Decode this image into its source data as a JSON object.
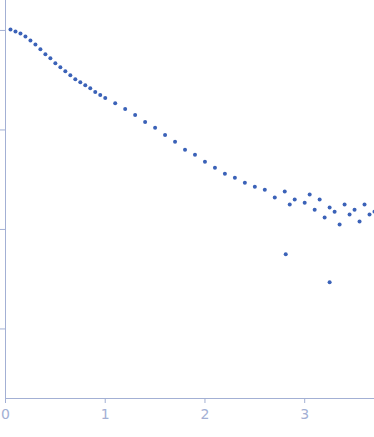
{
  "chart_data": {
    "type": "scatter",
    "log": "y",
    "tick_labels": "x",
    "color": "#3b62b8",
    "marker": "circle",
    "x": [
      0.05,
      0.1,
      0.15,
      0.2,
      0.25,
      0.3,
      0.35,
      0.4,
      0.45,
      0.5,
      0.55,
      0.6,
      0.65,
      0.7,
      0.75,
      0.8,
      0.85,
      0.9,
      0.95,
      1.0,
      1.1,
      1.2,
      1.3,
      1.4,
      1.5,
      1.6,
      1.7,
      1.8,
      1.9,
      2.0,
      2.1,
      2.2,
      2.3,
      2.4,
      2.5,
      2.6,
      2.7,
      2.8,
      2.81,
      2.85,
      2.9,
      3.0,
      3.05,
      3.1,
      3.15,
      3.2,
      3.25,
      3.25,
      3.3,
      3.35,
      3.4,
      3.45,
      3.5,
      3.55,
      3.6,
      3.65,
      3.7
    ],
    "values": [
      1.023,
      0.977,
      0.933,
      0.871,
      0.794,
      0.724,
      0.646,
      0.575,
      0.525,
      0.468,
      0.427,
      0.389,
      0.355,
      0.324,
      0.302,
      0.282,
      0.263,
      0.24,
      0.224,
      0.209,
      0.186,
      0.162,
      0.141,
      0.12,
      0.105,
      0.0891,
      0.0759,
      0.0631,
      0.0562,
      0.0479,
      0.0417,
      0.0363,
      0.0331,
      0.0295,
      0.0269,
      0.0251,
      0.0209,
      0.024,
      0.00562,
      0.0178,
      0.02,
      0.0186,
      0.0224,
      0.0158,
      0.02,
      0.0132,
      0.0166,
      0.00295,
      0.0151,
      0.0112,
      0.0178,
      0.0141,
      0.0158,
      0.012,
      0.0178,
      0.0141,
      0.0151
    ],
    "xlim": [
      0,
      3.7
    ],
    "xticks": [
      0,
      1,
      2,
      3
    ],
    "ylim": [
      0.0002,
      2
    ],
    "yticks": [
      1,
      0.1,
      0.01,
      0.001
    ]
  }
}
